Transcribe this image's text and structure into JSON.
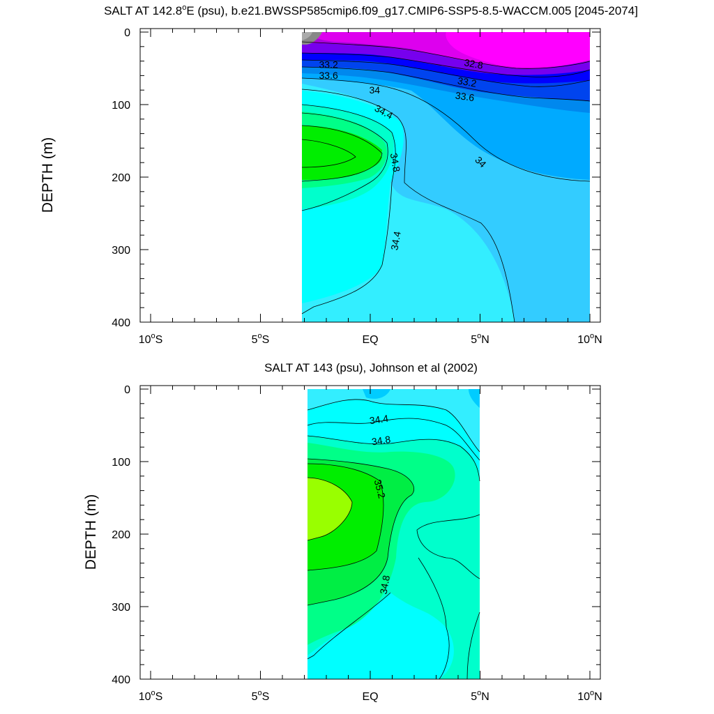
{
  "chart_data": [
    {
      "type": "contour",
      "title_parts": [
        "SALT AT 142.8",
        "o",
        "E (psu), b.e21.BWSSP585cmip6.f09_g17.CMIP6-SSP5-8.5-WACCM.005 [2045-2074]"
      ],
      "ylabel": "DEPTH (m)",
      "y_reversed": true,
      "ylim": [
        0,
        400
      ],
      "xlim": [
        -10,
        10
      ],
      "x_ticks": [
        {
          "value": -10,
          "num": "10",
          "sup": "o",
          "suffix": "S"
        },
        {
          "value": -5,
          "num": "5",
          "sup": "o",
          "suffix": "S"
        },
        {
          "value": 0,
          "num": "EQ",
          "sup": "",
          "suffix": ""
        },
        {
          "value": 5,
          "num": "5",
          "sup": "o",
          "suffix": "N"
        },
        {
          "value": 10,
          "num": "10",
          "sup": "o",
          "suffix": "N"
        }
      ],
      "y_ticks": [
        "0",
        "100",
        "200",
        "300",
        "400"
      ],
      "data_extent": {
        "lon": [
          -3.1,
          10
        ],
        "depth": [
          5,
          400
        ]
      },
      "contour_labels": [
        {
          "text": "32.8",
          "lon": 4.7,
          "depth": 45,
          "rotate": 10
        },
        {
          "text": "33.2",
          "lon": -1.9,
          "depth": 46,
          "rotate": 0
        },
        {
          "text": "33.6",
          "lon": -1.9,
          "depth": 61,
          "rotate": 0
        },
        {
          "text": "33.2",
          "lon": 4.4,
          "depth": 70,
          "rotate": 10
        },
        {
          "text": "34",
          "lon": 0.2,
          "depth": 81,
          "rotate": 0
        },
        {
          "text": "33.6",
          "lon": 4.3,
          "depth": 90,
          "rotate": 8
        },
        {
          "text": "34.4",
          "lon": 0.6,
          "depth": 111,
          "rotate": 28
        },
        {
          "text": "34.8",
          "lon": 1.1,
          "depth": 180,
          "rotate": 80
        },
        {
          "text": "34",
          "lon": 5.0,
          "depth": 180,
          "rotate": 45
        },
        {
          "text": "34.4",
          "lon": 1.2,
          "depth": 288,
          "rotate": -80
        }
      ]
    },
    {
      "type": "contour",
      "title_parts": [
        "SALT AT 143 (psu), Johnson et al (2002)"
      ],
      "ylabel": "DEPTH (m)",
      "y_reversed": true,
      "ylim": [
        0,
        400
      ],
      "xlim": [
        -10,
        10
      ],
      "x_ticks": [
        {
          "value": -10,
          "num": "10",
          "sup": "o",
          "suffix": "S"
        },
        {
          "value": -5,
          "num": "5",
          "sup": "o",
          "suffix": "S"
        },
        {
          "value": 0,
          "num": "EQ",
          "sup": "",
          "suffix": ""
        },
        {
          "value": 5,
          "num": "5",
          "sup": "o",
          "suffix": "N"
        },
        {
          "value": 10,
          "num": "10",
          "sup": "o",
          "suffix": "N"
        }
      ],
      "y_ticks": [
        "0",
        "100",
        "200",
        "300",
        "400"
      ],
      "data_extent": {
        "lon": [
          -2.8,
          5
        ],
        "depth": [
          5,
          400
        ]
      },
      "contour_labels": [
        {
          "text": "34.4",
          "lon": 0.4,
          "depth": 43,
          "rotate": -8
        },
        {
          "text": "34.8",
          "lon": 0.5,
          "depth": 72,
          "rotate": -8
        },
        {
          "text": "35.2",
          "lon": 0.4,
          "depth": 138,
          "rotate": 75
        },
        {
          "text": "34.8",
          "lon": 0.7,
          "depth": 270,
          "rotate": -80
        }
      ]
    }
  ],
  "palette": {
    "s32_6": "#ff00ff",
    "s32_8": "#dd00ee",
    "s33_0": "#aa00dd",
    "s33_2": "#7700ee",
    "s33_4": "#0000ff",
    "s33_6": "#0044ee",
    "s33_8": "#0088ee",
    "s34_0": "#00aaff",
    "s34_2": "#33ccff",
    "s34_4": "#33eeff",
    "s34_6": "#00ffff",
    "s34_8": "#00ffcc",
    "s35_0": "#00ff88",
    "s35_2": "#00ee00",
    "s35_4": "#99ff00",
    "low": "#888888"
  }
}
